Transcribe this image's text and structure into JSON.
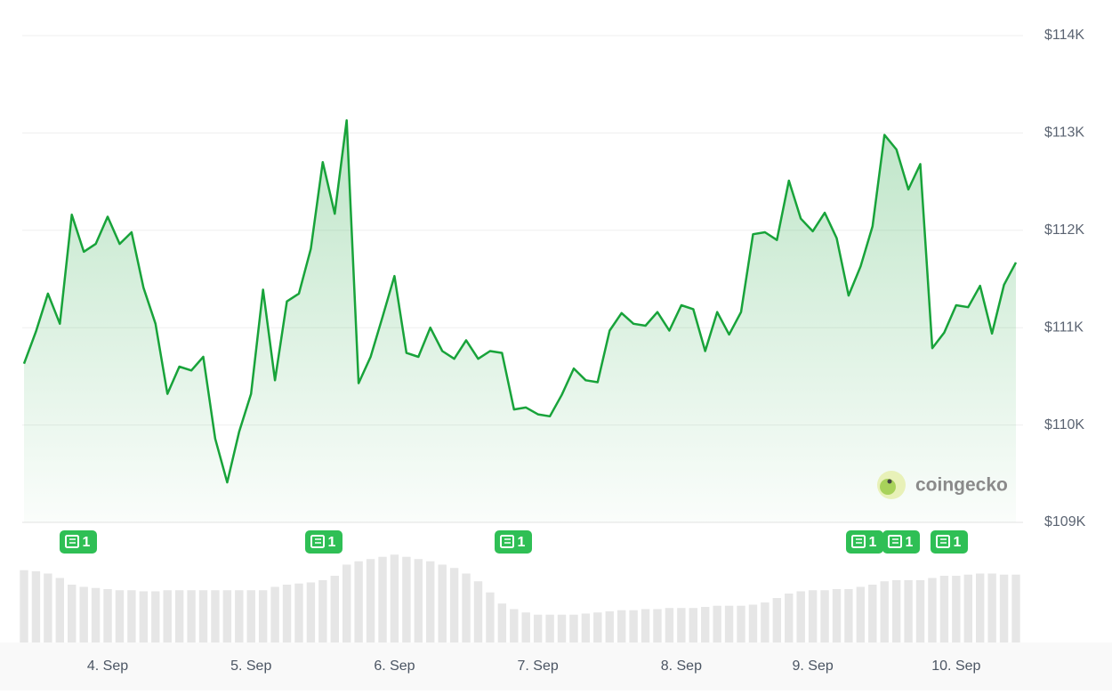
{
  "chart_data": {
    "type": "area-line",
    "color": "#18a33a",
    "categories": [
      null,
      null,
      null,
      null,
      null,
      null,
      null,
      "4. Sep",
      null,
      null,
      null,
      null,
      null,
      null,
      null,
      null,
      null,
      null,
      null,
      "5. Sep",
      null,
      null,
      null,
      null,
      null,
      null,
      null,
      null,
      null,
      null,
      null,
      "6. Sep",
      null,
      null,
      null,
      null,
      null,
      null,
      null,
      null,
      null,
      null,
      null,
      "7. Sep",
      null,
      null,
      null,
      null,
      null,
      null,
      null,
      null,
      null,
      null,
      null,
      "8. Sep",
      null,
      null,
      null,
      null,
      null,
      null,
      null,
      null,
      null,
      null,
      "9. Sep",
      null,
      null,
      null,
      null,
      null,
      null,
      null,
      null,
      null,
      null,
      null,
      "10. Sep",
      null,
      null,
      null,
      null,
      null
    ],
    "values": [
      110630,
      110960,
      111350,
      111040,
      112160,
      111780,
      111860,
      112140,
      111860,
      111980,
      111410,
      111040,
      110320,
      110600,
      110560,
      110700,
      109860,
      109410,
      109930,
      110320,
      111390,
      110460,
      111270,
      111350,
      111810,
      112700,
      112170,
      113130,
      110430,
      110700,
      111110,
      111530,
      110740,
      110700,
      111000,
      110760,
      110680,
      110870,
      110680,
      110760,
      110740,
      110160,
      110180,
      110110,
      110090,
      110310,
      110580,
      110460,
      110440,
      110970,
      111150,
      111040,
      111020,
      111160,
      110970,
      111230,
      111190,
      110760,
      111160,
      110930,
      111160,
      111960,
      111980,
      111900,
      112510,
      112120,
      111990,
      112180,
      111920,
      111330,
      111630,
      112040,
      112980,
      112830,
      112420,
      112680,
      110790,
      110950,
      111230,
      111210,
      111430,
      110940,
      111440,
      111670
    ],
    "volumes": [
      65,
      64,
      62,
      58,
      52,
      50,
      49,
      48,
      47,
      47,
      46,
      46,
      47,
      47,
      47,
      47,
      47,
      47,
      47,
      47,
      47,
      50,
      52,
      53,
      54,
      56,
      60,
      70,
      73,
      75,
      77,
      79,
      77,
      75,
      73,
      70,
      67,
      62,
      55,
      45,
      35,
      30,
      27,
      25,
      25,
      25,
      25,
      26,
      27,
      28,
      29,
      29,
      30,
      30,
      31,
      31,
      31,
      32,
      33,
      33,
      33,
      34,
      36,
      40,
      44,
      46,
      47,
      47,
      48,
      48,
      50,
      52,
      55,
      56,
      56,
      56,
      58,
      60,
      60,
      61,
      62,
      62,
      61,
      61
    ],
    "volume_color": "#e6e6e6",
    "vlim": [
      0,
      80
    ],
    "ylim": [
      109000,
      114000
    ],
    "yticks": [
      {
        "value": 109000,
        "label": "$109K"
      },
      {
        "value": 110000,
        "label": "$110K"
      },
      {
        "value": 111000,
        "label": "$111K"
      },
      {
        "value": 112000,
        "label": "$112K"
      },
      {
        "value": 113000,
        "label": "$113K"
      },
      {
        "value": 114000,
        "label": "$114K"
      }
    ],
    "grid": true,
    "news_counts": [
      1,
      1,
      1,
      1,
      1,
      1
    ],
    "watermark": "coingecko"
  }
}
